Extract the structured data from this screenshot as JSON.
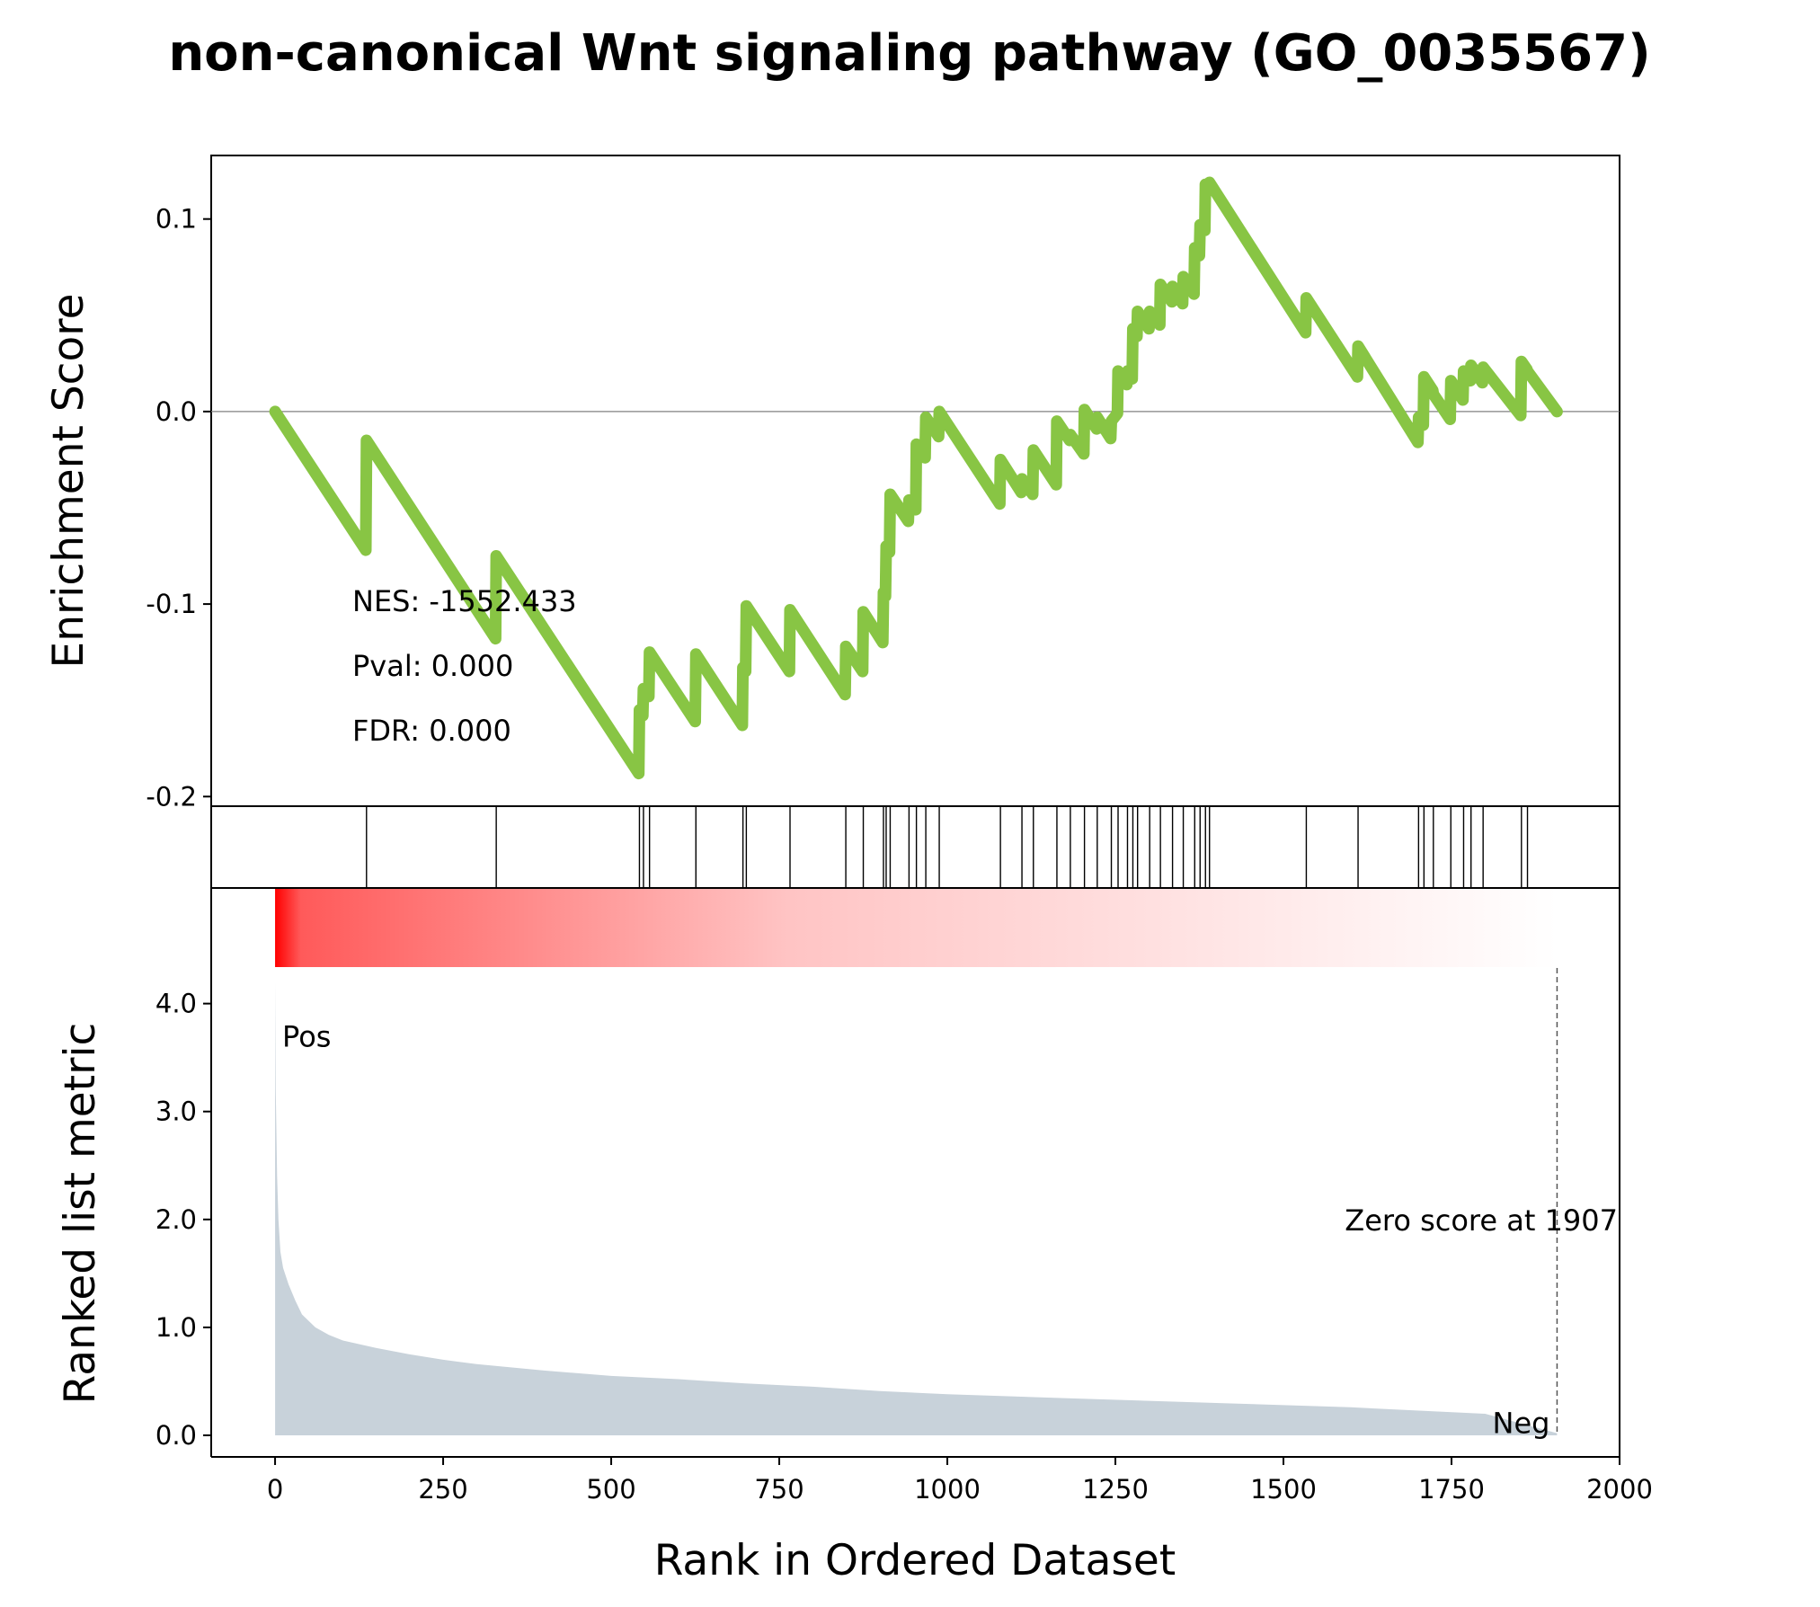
{
  "chart_data": {
    "type": "line",
    "title": "non-canonical Wnt signaling pathway (GO_0035567)",
    "xlabel": "Rank in Ordered Dataset",
    "xlim": [
      -95,
      2000
    ],
    "x_ticks": [
      0,
      250,
      500,
      750,
      1000,
      1250,
      1500,
      1750,
      2000
    ],
    "es_panel": {
      "ylabel": "Enrichment Score",
      "ylim": [
        -0.205,
        0.133
      ],
      "y_ticks": [
        0.1,
        0.0,
        -0.1,
        -0.2
      ],
      "y_tick_labels": [
        "0.1",
        "0.0",
        "-0.1",
        "-0.2"
      ],
      "line_color": "#88c544",
      "zero_line": true,
      "running_es": {
        "x": [
          0,
          135,
          136,
          328,
          329,
          541,
          542,
          547,
          548,
          556,
          557,
          625,
          626,
          695,
          696,
          700,
          701,
          765,
          766,
          848,
          849,
          874,
          875,
          904,
          905,
          908,
          909,
          914,
          915,
          942,
          943,
          953,
          954,
          967,
          968,
          987,
          988,
          1078,
          1079,
          1110,
          1111,
          1127,
          1128,
          1162,
          1163,
          1182,
          1183,
          1203,
          1204,
          1222,
          1223,
          1243,
          1244,
          1253,
          1254,
          1267,
          1268,
          1275,
          1276,
          1282,
          1283,
          1300,
          1301,
          1316,
          1317,
          1334,
          1335,
          1350,
          1351,
          1367,
          1368,
          1375,
          1376,
          1383,
          1384,
          1389,
          1390,
          1533,
          1534,
          1610,
          1611,
          1700,
          1701,
          1708,
          1709,
          1722,
          1723,
          1748,
          1749,
          1767,
          1768,
          1778,
          1779,
          1796,
          1797,
          1853,
          1854,
          1862,
          1863,
          1907
        ],
        "y": [
          0.0,
          -0.072,
          -0.015,
          -0.118,
          -0.075,
          -0.188,
          -0.155,
          -0.158,
          -0.144,
          -0.148,
          -0.125,
          -0.161,
          -0.126,
          -0.163,
          -0.133,
          -0.135,
          -0.101,
          -0.135,
          -0.103,
          -0.147,
          -0.122,
          -0.135,
          -0.104,
          -0.12,
          -0.094,
          -0.096,
          -0.07,
          -0.073,
          -0.043,
          -0.057,
          -0.046,
          -0.051,
          -0.017,
          -0.024,
          -0.003,
          -0.013,
          0.0,
          -0.048,
          -0.025,
          -0.042,
          -0.035,
          -0.043,
          -0.02,
          -0.038,
          -0.005,
          -0.015,
          -0.012,
          -0.022,
          0.001,
          -0.009,
          -0.003,
          -0.014,
          -0.005,
          -0.001,
          0.021,
          0.014,
          0.021,
          0.017,
          0.043,
          0.039,
          0.052,
          0.043,
          0.052,
          0.045,
          0.066,
          0.057,
          0.065,
          0.056,
          0.07,
          0.061,
          0.085,
          0.081,
          0.097,
          0.094,
          0.118,
          0.115,
          0.119,
          0.041,
          0.059,
          0.018,
          0.034,
          -0.016,
          -0.003,
          -0.007,
          0.018,
          0.011,
          0.009,
          -0.004,
          0.016,
          0.006,
          0.021,
          0.016,
          0.024,
          0.015,
          0.023,
          -0.002,
          0.026,
          0.022,
          0.021,
          0.0
        ]
      },
      "annotations": [
        "NES: -1552.433",
        "Pval: 0.000",
        "FDR: 0.000"
      ]
    },
    "hits": [
      136,
      329,
      542,
      548,
      557,
      626,
      696,
      701,
      766,
      849,
      875,
      905,
      909,
      915,
      943,
      954,
      968,
      988,
      1079,
      1111,
      1128,
      1163,
      1183,
      1204,
      1223,
      1244,
      1254,
      1268,
      1276,
      1283,
      1301,
      1317,
      1335,
      1351,
      1368,
      1376,
      1384,
      1390,
      1534,
      1611,
      1701,
      1709,
      1723,
      1749,
      1768,
      1779,
      1797,
      1854,
      1863
    ],
    "heatmap": {
      "start_color": "#ff0000",
      "end_color": "#ffffff"
    },
    "rank_panel": {
      "ylabel": "Ranked list metric",
      "ylim": [
        -0.2,
        4.33
      ],
      "y_ticks": [
        0.0,
        1.0,
        2.0,
        3.0,
        4.0
      ],
      "y_tick_labels": [
        "0.0",
        "1.0",
        "2.0",
        "3.0",
        "4.0"
      ],
      "fill_color": "#c8d2da",
      "pos_label": "Pos",
      "neg_label": "Neg",
      "zero_cross_label": "Zero score at 1907",
      "zero_cross_x": 1907,
      "metric": {
        "x": [
          0,
          1,
          3,
          5,
          8,
          12,
          20,
          30,
          40,
          60,
          80,
          100,
          150,
          200,
          250,
          300,
          400,
          500,
          600,
          700,
          800,
          900,
          1000,
          1200,
          1400,
          1600,
          1800,
          1907
        ],
        "y": [
          4.2,
          3.2,
          2.4,
          2.0,
          1.7,
          1.55,
          1.4,
          1.25,
          1.12,
          1.0,
          0.93,
          0.88,
          0.81,
          0.75,
          0.7,
          0.66,
          0.6,
          0.55,
          0.52,
          0.48,
          0.45,
          0.41,
          0.38,
          0.34,
          0.3,
          0.26,
          0.2,
          0.02
        ]
      }
    }
  }
}
